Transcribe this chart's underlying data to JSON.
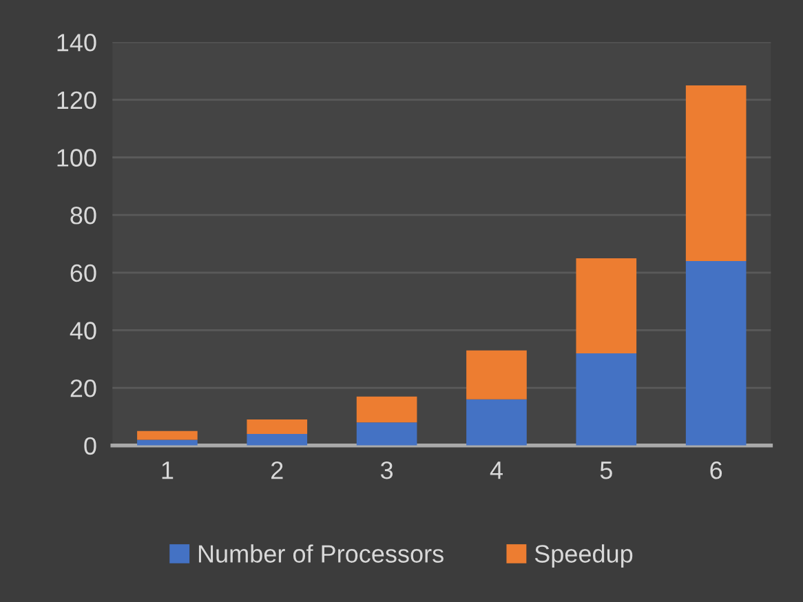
{
  "chart_data": {
    "type": "bar",
    "stacked": true,
    "categories": [
      "1",
      "2",
      "3",
      "4",
      "5",
      "6"
    ],
    "series": [
      {
        "name": "Number of Processors",
        "color": "#4472c4",
        "values": [
          2,
          4,
          8,
          16,
          32,
          64
        ]
      },
      {
        "name": "Speedup",
        "color": "#ed7d31",
        "values": [
          3,
          5,
          9,
          17,
          33,
          61
        ]
      }
    ],
    "ylim": [
      0,
      140
    ],
    "yticks": [
      0,
      20,
      40,
      60,
      80,
      100,
      120,
      140
    ],
    "grid": "y",
    "legend": "bottom"
  }
}
